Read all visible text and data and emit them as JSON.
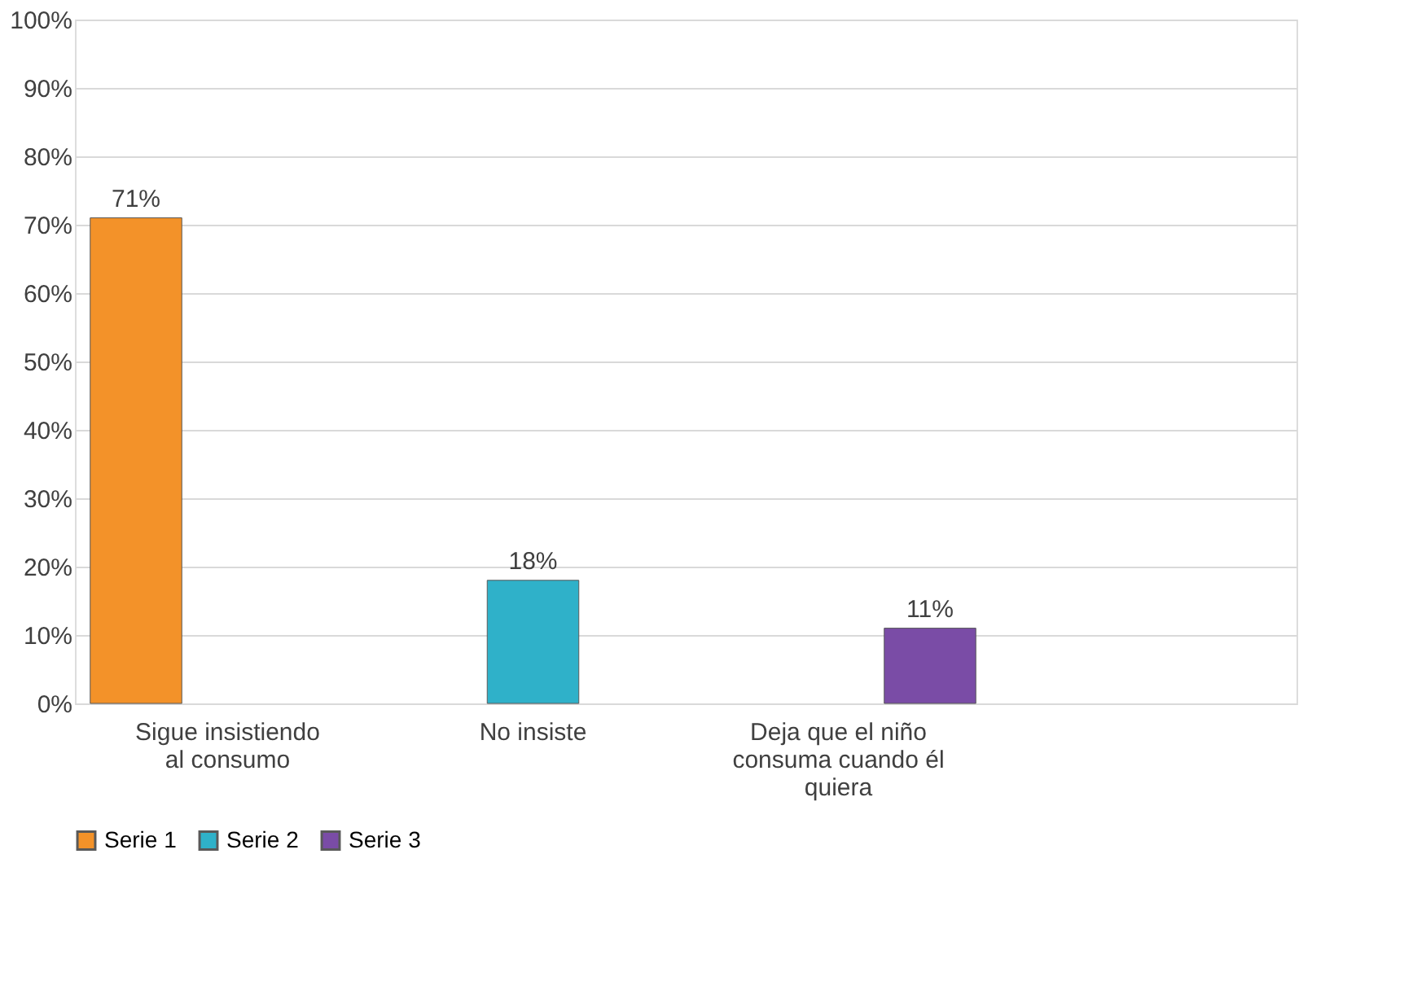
{
  "chart_data": {
    "type": "bar",
    "categories": [
      "Sigue insistiendo al consumo",
      "No insiste",
      "Deja que el niño consuma cuando él quiera",
      null
    ],
    "series": [
      {
        "name": "Serie 1",
        "color": "#f39229",
        "values": [
          71,
          null,
          null,
          null
        ],
        "value_labels": [
          "71%",
          null,
          null,
          null
        ]
      },
      {
        "name": "Serie 2",
        "color": "#2fb1c9",
        "values": [
          null,
          18,
          null,
          null
        ],
        "value_labels": [
          null,
          "18%",
          null,
          null
        ]
      },
      {
        "name": "Serie 3",
        "color": "#7a4ca6",
        "values": [
          null,
          null,
          11,
          null
        ],
        "value_labels": [
          null,
          null,
          "11%",
          null
        ]
      }
    ],
    "ylim": [
      0,
      100
    ],
    "yticks": [
      {
        "value": 0,
        "label": "0%"
      },
      {
        "value": 10,
        "label": "10%"
      },
      {
        "value": 20,
        "label": "20%"
      },
      {
        "value": 30,
        "label": "30%"
      },
      {
        "value": 40,
        "label": "40%"
      },
      {
        "value": 50,
        "label": "50%"
      },
      {
        "value": 60,
        "label": "60%"
      },
      {
        "value": 70,
        "label": "70%"
      },
      {
        "value": 80,
        "label": "80%"
      },
      {
        "value": 90,
        "label": "90%"
      },
      {
        "value": 100,
        "label": "100%"
      }
    ],
    "grid": "y",
    "legend": "bottom"
  }
}
